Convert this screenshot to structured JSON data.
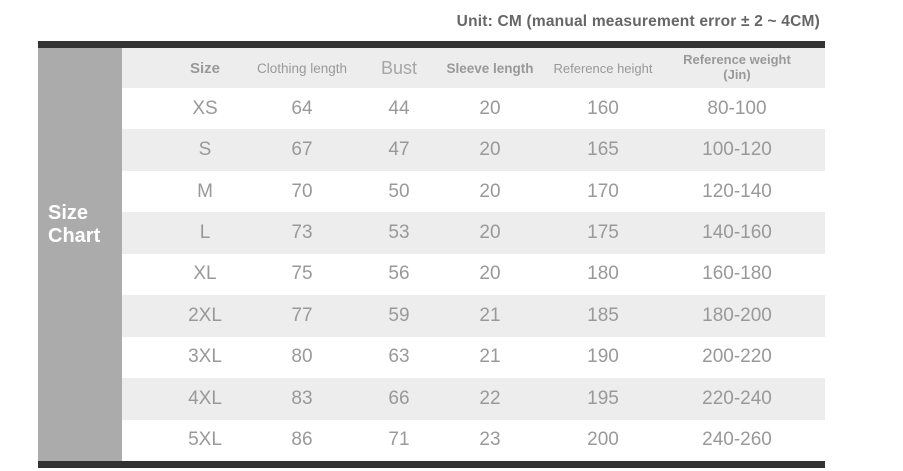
{
  "unit_note": "Unit: CM (manual measurement error ± 2 ~ 4CM)",
  "sidebar_label": "Size Chart",
  "colors": {
    "bar": "#333333",
    "sidebar_bg": "#ababab",
    "stripe_bg": "#ededed",
    "text": "#999999",
    "title_text": "#666666"
  },
  "chart_data": {
    "type": "table",
    "title": "Unit: CM (manual measurement error ± 2 ~ 4CM)",
    "columns": [
      "Size",
      "Clothing length",
      "Bust",
      "Sleeve length",
      "Reference height",
      "Reference weight (Jin)"
    ],
    "rows": [
      [
        "XS",
        64,
        44,
        20,
        160,
        "80-100"
      ],
      [
        "S",
        67,
        47,
        20,
        165,
        "100-120"
      ],
      [
        "M",
        70,
        50,
        20,
        170,
        "120-140"
      ],
      [
        "L",
        73,
        53,
        20,
        175,
        "140-160"
      ],
      [
        "XL",
        75,
        56,
        20,
        180,
        "160-180"
      ],
      [
        "2XL",
        77,
        59,
        21,
        185,
        "180-200"
      ],
      [
        "3XL",
        80,
        63,
        21,
        190,
        "200-220"
      ],
      [
        "4XL",
        83,
        66,
        22,
        195,
        "220-240"
      ],
      [
        "5XL",
        86,
        71,
        23,
        200,
        "240-260"
      ]
    ],
    "layout": {
      "stripes": "alternating rows starting white after header",
      "legend_position": "none",
      "grid": false
    }
  }
}
